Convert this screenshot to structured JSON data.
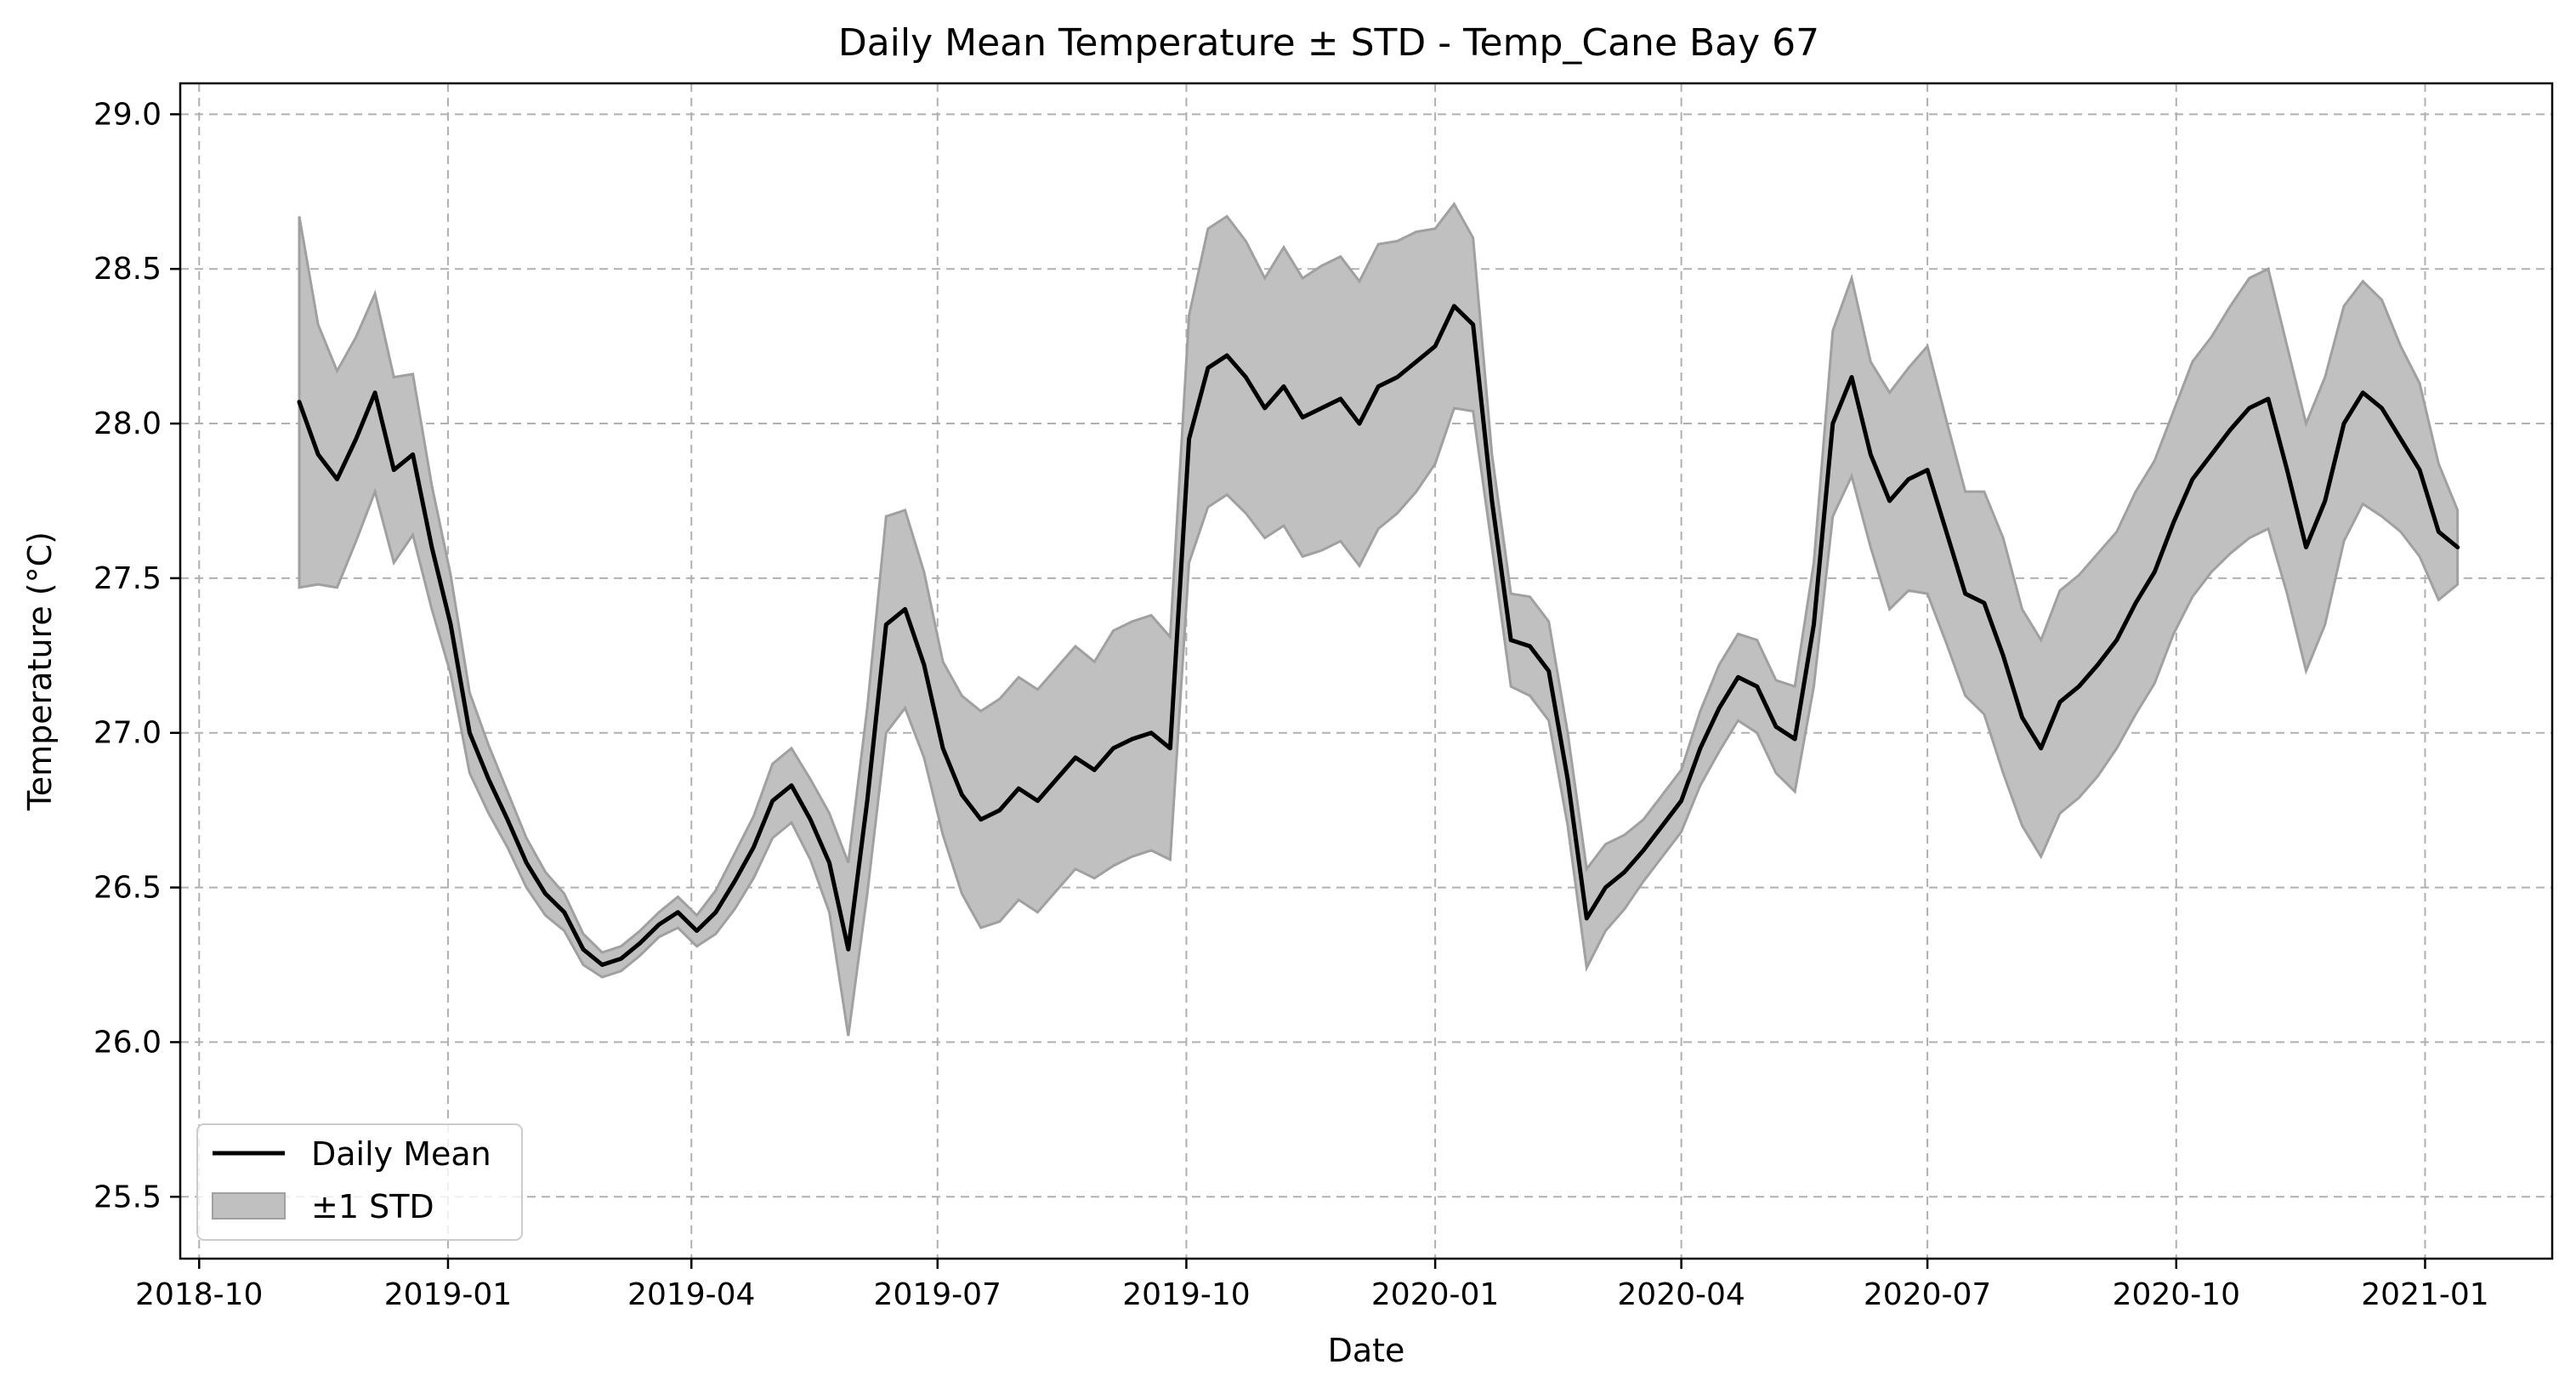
{
  "chart_data": {
    "type": "line",
    "title": "Daily Mean Temperature ± STD - Temp_Cane Bay 67",
    "xlabel": "Date",
    "ylabel": "Temperature (°C)",
    "xlim": [
      "2018-09-24",
      "2021-02-17"
    ],
    "ylim": [
      25.3,
      29.1
    ],
    "x_ticks": [
      "2018-10",
      "2019-01",
      "2019-04",
      "2019-07",
      "2019-10",
      "2020-01",
      "2020-04",
      "2020-07",
      "2020-10",
      "2021-01"
    ],
    "y_ticks": [
      "25.5",
      "26.0",
      "26.5",
      "27.0",
      "27.5",
      "28.0",
      "28.5",
      "29.0"
    ],
    "grid": true,
    "legend_position": "lower-left",
    "colors": {
      "mean": "#000000",
      "band_fill": "#c0c0c0",
      "band_edge": "#a0a0a0"
    },
    "series": [
      {
        "name": "Daily Mean",
        "kind": "line",
        "x": [
          "2018-11-07",
          "2018-11-14",
          "2018-11-21",
          "2018-11-28",
          "2018-12-05",
          "2018-12-12",
          "2018-12-19",
          "2018-12-26",
          "2019-01-02",
          "2019-01-09",
          "2019-01-16",
          "2019-01-23",
          "2019-01-30",
          "2019-02-06",
          "2019-02-13",
          "2019-02-20",
          "2019-02-27",
          "2019-03-06",
          "2019-03-13",
          "2019-03-20",
          "2019-03-27",
          "2019-04-03",
          "2019-04-10",
          "2019-04-17",
          "2019-04-24",
          "2019-05-01",
          "2019-05-08",
          "2019-05-15",
          "2019-05-22",
          "2019-05-29",
          "2019-06-05",
          "2019-06-12",
          "2019-06-19",
          "2019-06-26",
          "2019-07-03",
          "2019-07-10",
          "2019-07-17",
          "2019-07-24",
          "2019-07-31",
          "2019-08-07",
          "2019-08-14",
          "2019-08-21",
          "2019-08-28",
          "2019-09-04",
          "2019-09-11",
          "2019-09-18",
          "2019-09-25",
          "2019-10-02",
          "2019-10-09",
          "2019-10-16",
          "2019-10-23",
          "2019-10-30",
          "2019-11-06",
          "2019-11-13",
          "2019-11-20",
          "2019-11-27",
          "2019-12-04",
          "2019-12-11",
          "2019-12-18",
          "2019-12-25",
          "2020-01-01",
          "2020-01-08",
          "2020-01-15",
          "2020-01-22",
          "2020-01-29",
          "2020-02-05",
          "2020-02-12",
          "2020-02-19",
          "2020-02-26",
          "2020-03-04",
          "2020-03-11",
          "2020-03-18",
          "2020-03-25",
          "2020-04-01",
          "2020-04-08",
          "2020-04-15",
          "2020-04-22",
          "2020-04-29",
          "2020-05-06",
          "2020-05-13",
          "2020-05-20",
          "2020-05-27",
          "2020-06-03",
          "2020-06-10",
          "2020-06-17",
          "2020-06-24",
          "2020-07-01",
          "2020-07-08",
          "2020-07-15",
          "2020-07-22",
          "2020-07-29",
          "2020-08-05",
          "2020-08-12",
          "2020-08-19",
          "2020-08-26",
          "2020-09-02",
          "2020-09-09",
          "2020-09-16",
          "2020-09-23",
          "2020-09-30",
          "2020-10-07",
          "2020-10-14",
          "2020-10-21",
          "2020-10-28",
          "2020-11-04",
          "2020-11-11",
          "2020-11-18",
          "2020-11-25",
          "2020-12-02",
          "2020-12-09",
          "2020-12-16",
          "2020-12-23",
          "2020-12-30",
          "2021-01-06",
          "2021-01-13"
        ],
        "values": [
          28.07,
          27.9,
          27.82,
          27.95,
          28.1,
          27.85,
          27.9,
          27.6,
          27.35,
          27.0,
          26.85,
          26.72,
          26.58,
          26.48,
          26.42,
          26.3,
          26.25,
          26.27,
          26.32,
          26.38,
          26.42,
          26.36,
          26.42,
          26.52,
          26.63,
          26.78,
          26.83,
          26.72,
          26.58,
          26.3,
          26.78,
          27.35,
          27.4,
          27.22,
          26.95,
          26.8,
          26.72,
          26.75,
          26.82,
          26.78,
          26.85,
          26.92,
          26.88,
          26.95,
          26.98,
          27.0,
          26.95,
          27.95,
          28.18,
          28.22,
          28.15,
          28.05,
          28.12,
          28.02,
          28.05,
          28.08,
          28.0,
          28.12,
          28.15,
          28.2,
          28.25,
          28.38,
          28.32,
          27.75,
          27.3,
          27.28,
          27.2,
          26.85,
          26.4,
          26.5,
          26.55,
          26.62,
          26.7,
          26.78,
          26.95,
          27.08,
          27.18,
          27.15,
          27.02,
          26.98,
          27.35,
          28.0,
          28.15,
          27.9,
          27.75,
          27.82,
          27.85,
          27.65,
          27.45,
          27.42,
          27.25,
          27.05,
          26.95,
          27.1,
          27.15,
          27.22,
          27.3,
          27.42,
          27.52,
          27.68,
          27.82,
          27.9,
          27.98,
          28.05,
          28.08,
          27.85,
          27.6,
          27.75,
          28.0,
          28.1,
          28.05,
          27.95,
          27.85,
          27.65,
          27.6
        ]
      },
      {
        "name": "±1 STD",
        "kind": "band",
        "std": [
          0.6,
          0.42,
          0.35,
          0.33,
          0.32,
          0.3,
          0.26,
          0.2,
          0.16,
          0.13,
          0.11,
          0.09,
          0.08,
          0.07,
          0.06,
          0.05,
          0.04,
          0.04,
          0.04,
          0.04,
          0.05,
          0.05,
          0.07,
          0.09,
          0.1,
          0.12,
          0.12,
          0.13,
          0.16,
          0.28,
          0.3,
          0.35,
          0.32,
          0.3,
          0.28,
          0.32,
          0.35,
          0.36,
          0.36,
          0.36,
          0.36,
          0.36,
          0.35,
          0.38,
          0.38,
          0.38,
          0.36,
          0.4,
          0.45,
          0.45,
          0.44,
          0.42,
          0.45,
          0.45,
          0.46,
          0.46,
          0.46,
          0.46,
          0.44,
          0.42,
          0.38,
          0.33,
          0.28,
          0.15,
          0.15,
          0.16,
          0.16,
          0.15,
          0.16,
          0.14,
          0.12,
          0.1,
          0.1,
          0.1,
          0.12,
          0.14,
          0.14,
          0.15,
          0.15,
          0.17,
          0.2,
          0.3,
          0.32,
          0.3,
          0.35,
          0.36,
          0.4,
          0.36,
          0.33,
          0.36,
          0.38,
          0.35,
          0.35,
          0.36,
          0.36,
          0.36,
          0.35,
          0.36,
          0.36,
          0.36,
          0.38,
          0.38,
          0.4,
          0.42,
          0.42,
          0.4,
          0.4,
          0.4,
          0.38,
          0.36,
          0.35,
          0.3,
          0.28,
          0.22,
          0.12
        ]
      }
    ],
    "legend": {
      "line_label": "Daily Mean",
      "band_label": "±1 STD"
    }
  }
}
